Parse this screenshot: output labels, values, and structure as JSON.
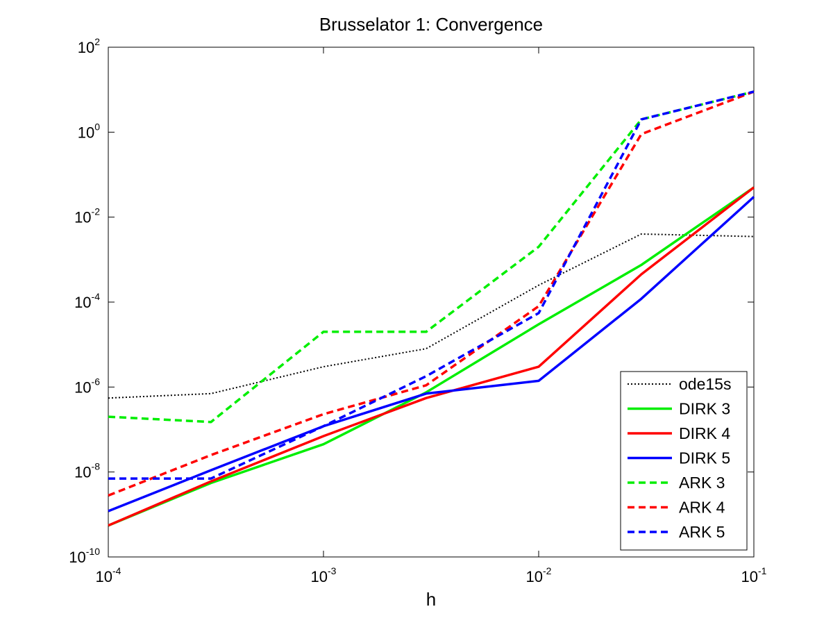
{
  "chart_data": {
    "type": "line",
    "title": "Brusselator 1: Convergence",
    "xlabel": "h",
    "ylabel": "",
    "x_scale": "log",
    "y_scale": "log",
    "xlim": [
      0.0001,
      0.1
    ],
    "ylim": [
      1e-10,
      100
    ],
    "x_ticks": [
      {
        "base": "10",
        "exp": "-4",
        "value": 0.0001
      },
      {
        "base": "10",
        "exp": "-3",
        "value": 0.001
      },
      {
        "base": "10",
        "exp": "-2",
        "value": 0.01
      },
      {
        "base": "10",
        "exp": "-1",
        "value": 0.1
      }
    ],
    "y_ticks": [
      {
        "base": "10",
        "exp": "-10",
        "value": 1e-10
      },
      {
        "base": "10",
        "exp": "-8",
        "value": 1e-08
      },
      {
        "base": "10",
        "exp": "-6",
        "value": 1e-06
      },
      {
        "base": "10",
        "exp": "-4",
        "value": 0.0001
      },
      {
        "base": "10",
        "exp": "-2",
        "value": 0.01
      },
      {
        "base": "10",
        "exp": "0",
        "value": 1
      },
      {
        "base": "10",
        "exp": "2",
        "value": 100
      }
    ],
    "grid": false,
    "legend_position": "bottom-right",
    "x": [
      0.0001,
      0.0003,
      0.001,
      0.003,
      0.01,
      0.03,
      0.1
    ],
    "series": [
      {
        "name": "ode15s",
        "style": "dotted",
        "color": "#000000",
        "values": [
          5.5e-07,
          7e-07,
          3e-06,
          8e-06,
          0.00025,
          0.004,
          0.0035
        ]
      },
      {
        "name": "DIRK 3",
        "style": "solid",
        "color": "#00ee00",
        "values": [
          5.5e-10,
          5.5e-09,
          4.5e-08,
          7.5e-07,
          3e-05,
          0.00075,
          0.05
        ]
      },
      {
        "name": "DIRK 4",
        "style": "solid",
        "color": "#ff0000",
        "values": [
          5.5e-10,
          6e-09,
          7e-08,
          5.5e-07,
          3e-06,
          0.00045,
          0.05
        ]
      },
      {
        "name": "DIRK 5",
        "style": "solid",
        "color": "#0000ff",
        "values": [
          1.2e-09,
          1.1e-08,
          1.2e-07,
          7e-07,
          1.4e-06,
          0.00012,
          0.03
        ]
      },
      {
        "name": "ARK 3",
        "style": "dashed",
        "color": "#00ee00",
        "values": [
          2e-07,
          1.5e-07,
          2e-05,
          2e-05,
          0.002,
          2,
          9
        ]
      },
      {
        "name": "ARK 4",
        "style": "dashed",
        "color": "#ff0000",
        "values": [
          2.8e-09,
          2.5e-08,
          2.3e-07,
          1.1e-06,
          8e-05,
          0.9,
          9
        ]
      },
      {
        "name": "ARK 5",
        "style": "dashed",
        "color": "#0000ff",
        "values": [
          7e-09,
          7e-09,
          1.2e-07,
          1.8e-06,
          5.5e-05,
          2,
          9
        ]
      }
    ]
  }
}
